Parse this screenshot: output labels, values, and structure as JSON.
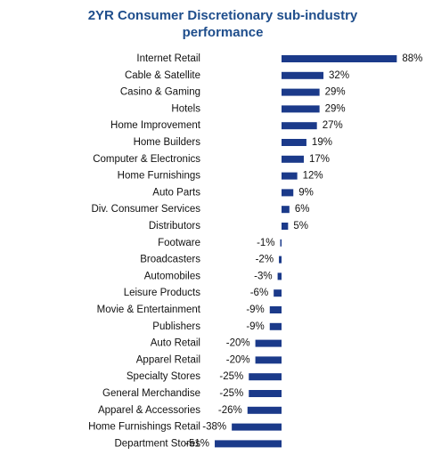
{
  "chart_data": {
    "type": "barh",
    "title": "2YR Consumer Discretionary sub-industry performance",
    "color": "#1b3a8a",
    "categories": [
      "Internet Retail",
      "Cable & Satellite",
      "Casino & Gaming",
      "Hotels",
      "Home Improvement",
      "Home Builders",
      "Computer & Electronics",
      "Home Furnishings",
      "Auto Parts",
      "Div. Consumer Services",
      "Distributors",
      "Footware",
      "Broadcasters",
      "Automobiles",
      "Leisure Products",
      "Movie & Entertainment",
      "Publishers",
      "Auto Retail",
      "Apparel Retail",
      "Specialty Stores",
      "General Merchandise",
      "Apparel & Accessories",
      "Home Furnishings Retail",
      "Department Stores"
    ],
    "values": [
      88,
      32,
      29,
      29,
      27,
      19,
      17,
      12,
      9,
      6,
      5,
      -1,
      -2,
      -3,
      -6,
      -9,
      -9,
      -20,
      -20,
      -25,
      -25,
      -26,
      -38,
      -51
    ],
    "value_labels": [
      "88%",
      "32%",
      "29%",
      "29%",
      "27%",
      "19%",
      "17%",
      "12%",
      "9%",
      "6%",
      "5%",
      "-1%",
      "-2%",
      "-3%",
      "-6%",
      "-9%",
      "-9%",
      "-20%",
      "-20%",
      "-25%",
      "-25%",
      "-26%",
      "-38%",
      "-51%"
    ]
  }
}
